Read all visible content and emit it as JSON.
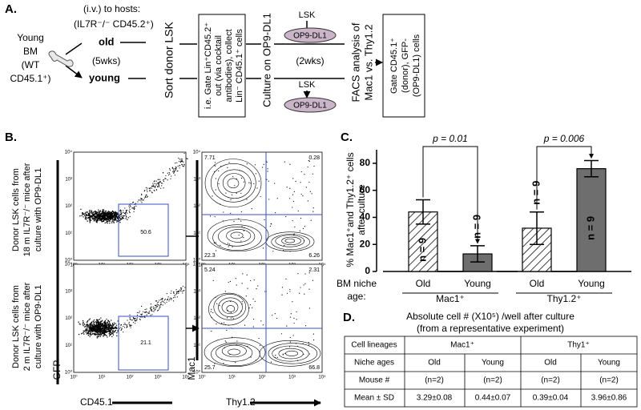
{
  "panel_a": {
    "label": "A.",
    "source": [
      "Young",
      "BM",
      "(WT",
      "CD45.1⁺)"
    ],
    "route": "(i.v.) to hosts:",
    "hosts": "(IL7R⁻/⁻ CD45.2⁺)",
    "old": "old",
    "wait": "(5wks)",
    "young": "young",
    "sort": "Sort donor LSK",
    "gate_lines": [
      "i.e. Gate Lin⁺CD45.2⁺",
      "out (via cocktail",
      "antibodies), collect",
      "Lin⁻ CD45.1⁺ cells"
    ],
    "culture": "Culture on OP9-DL1",
    "dish_top": "LSK",
    "dish_label": "OP9-DL1",
    "culture_time": "(2wks)",
    "facs": [
      "FACS analysis of",
      "Mac1 vs. Thy1.2"
    ],
    "final_gate": [
      "Gate CD45.1⁺",
      "(donor), GFP-",
      "(OP9-DL1) cells"
    ]
  },
  "panel_b": {
    "label": "B.",
    "row_labels": [
      [
        "Donor LSK cells from",
        "18 m IL7R⁻/⁻ mice after",
        "culture with OP9-DL1"
      ],
      [
        "Donor LSK cells from",
        "2 m IL7R⁻/⁻ mice after",
        "culture with OP9-DL1"
      ]
    ],
    "gates": [
      50.6,
      21.1
    ],
    "quadrants": [
      [
        7.71,
        0.28,
        22.3,
        6.26
      ],
      [
        5.24,
        2.31,
        25.7,
        66.8
      ]
    ],
    "tick_labels": [
      "10⁰",
      "10¹",
      "10²",
      "10³",
      "10⁴"
    ],
    "x_label": "CD45.1",
    "y_label": "GFP",
    "x2_label": "Thy1.2",
    "y2_label": "Mac1"
  },
  "chart_data": {
    "type": "bar",
    "label": "C.",
    "ylabel": [
      "% Mac1⁺and Thy1.2⁺ cells",
      "after culture"
    ],
    "group_axis_label": [
      "BM niche",
      "age:"
    ],
    "categories": [
      "Mac1⁺",
      "Thy1.2⁺"
    ],
    "series": [
      {
        "name": "Old",
        "color": "#ffffff",
        "pattern": "hatch",
        "values": [
          44,
          32
        ],
        "errors": [
          9,
          12
        ],
        "n_labels": [
          "n = 9",
          "n = 9"
        ]
      },
      {
        "name": "Young",
        "color": "#6e6e6e",
        "values": [
          13,
          76
        ],
        "errors": [
          6,
          6
        ],
        "n_labels": [
          "n = 9",
          "n = 9"
        ]
      }
    ],
    "comparisons": [
      "p = 0.01",
      "p = 0.006"
    ],
    "ylim": [
      0,
      90
    ],
    "yticks": [
      0,
      20,
      40,
      60,
      80
    ]
  },
  "panel_d": {
    "label": "D.",
    "caption": [
      "Absolute cell # (X10⁵) /well after culture",
      "(from a representative experiment)"
    ],
    "table": {
      "rows": [
        [
          "Cell lineages",
          "Mac1⁺",
          "Thy1⁺"
        ],
        [
          "Niche ages",
          "Old",
          "Young",
          "Old",
          "Young"
        ],
        [
          "Mouse #",
          "(n=2)",
          "(n=2)",
          "(n=2)",
          "(n=2)"
        ],
        [
          "Mean ± SD",
          "3.29±0.08",
          "0.44±0.07",
          "0.39±0.04",
          "3.96±0.86"
        ]
      ]
    }
  }
}
